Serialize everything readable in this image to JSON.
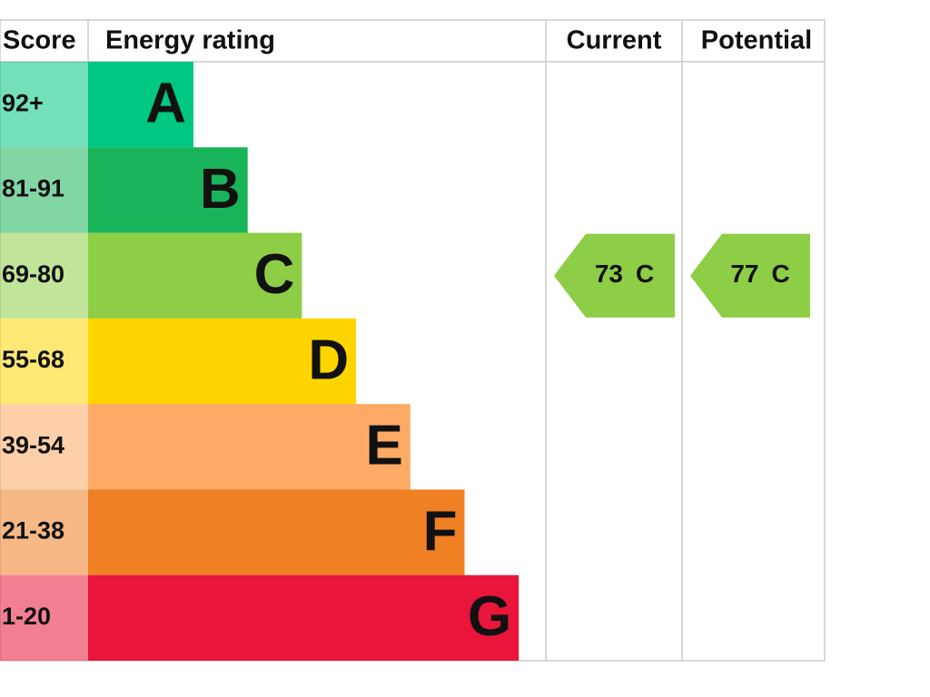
{
  "header": {
    "score": "Score",
    "rating": "Energy rating",
    "current": "Current",
    "potential": "Potential"
  },
  "bands": [
    {
      "score": "92+",
      "letter": "A",
      "color": "#00c781"
    },
    {
      "score": "81-91",
      "letter": "B",
      "color": "#19b459"
    },
    {
      "score": "69-80",
      "letter": "C",
      "color": "#8dce46"
    },
    {
      "score": "55-68",
      "letter": "D",
      "color": "#ffd500"
    },
    {
      "score": "39-54",
      "letter": "E",
      "color": "#fcaa65"
    },
    {
      "score": "21-38",
      "letter": "F",
      "color": "#ef8023"
    },
    {
      "score": "1-20",
      "letter": "G",
      "color": "#e9153b"
    }
  ],
  "current": {
    "score": 73,
    "letter": "C"
  },
  "potential": {
    "score": 77,
    "letter": "C"
  }
}
